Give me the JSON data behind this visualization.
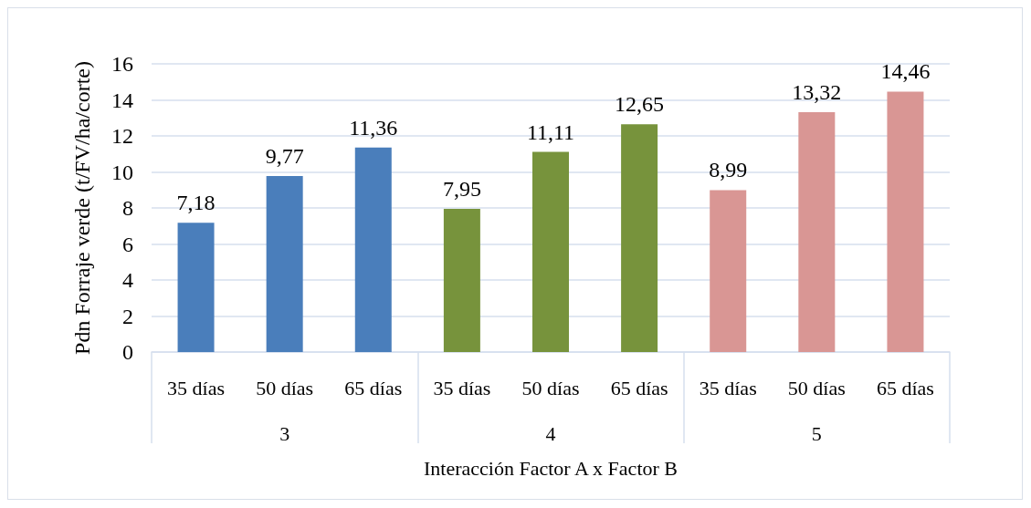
{
  "chart_data": {
    "type": "bar",
    "ylabel": "Pdn Forraje verde (t/FV/ha/corte)",
    "xlabel": "Interacción Factor A x Factor B",
    "categories": [
      "35 días",
      "50 días",
      "65 días",
      "35 días",
      "50 días",
      "65 días",
      "35 días",
      "50 días",
      "65 días"
    ],
    "values": [
      7.18,
      9.77,
      11.36,
      7.95,
      11.11,
      12.65,
      8.99,
      13.32,
      14.46
    ],
    "value_labels": [
      "7,18",
      "9,77",
      "11,36",
      "7,95",
      "11,11",
      "12,65",
      "8,99",
      "13,32",
      "14,46"
    ],
    "colors": [
      "#4a7ebb",
      "#4a7ebb",
      "#4a7ebb",
      "#77933c",
      "#77933c",
      "#77933c",
      "#d99694",
      "#d99694",
      "#d99694"
    ],
    "annotations": [
      "3",
      "4",
      "5"
    ],
    "ylim": [
      0,
      16
    ],
    "yticks": [
      0,
      2,
      4,
      6,
      8,
      10,
      12,
      14,
      16
    ],
    "grid": "y"
  }
}
